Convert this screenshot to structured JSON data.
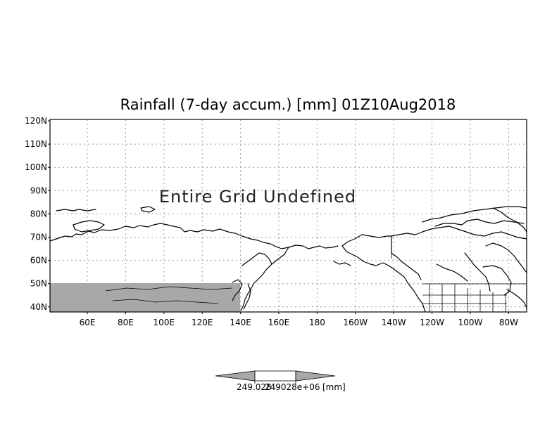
{
  "title": "Rainfall (7-day accum.) [mm] 01Z10Aug2018",
  "message": "Entire Grid Undefined",
  "latitude_labels": [
    "120N",
    "110N",
    "100N",
    "90N",
    "80N",
    "70N",
    "60N",
    "50N",
    "40N"
  ],
  "longitude_labels": [
    "60E",
    "80E",
    "100E",
    "120E",
    "140E",
    "160E",
    "180",
    "160W",
    "140W",
    "120W",
    "100W",
    "80W"
  ],
  "colorbar": {
    "value_label": "249.028",
    "exponent_label": "249028e+06",
    "unit_label": "[mm]"
  },
  "colors": {
    "undefined_fill": "#a8a8a8",
    "frame": "#000000",
    "colorbar_fill": "#a8a8a8"
  }
}
